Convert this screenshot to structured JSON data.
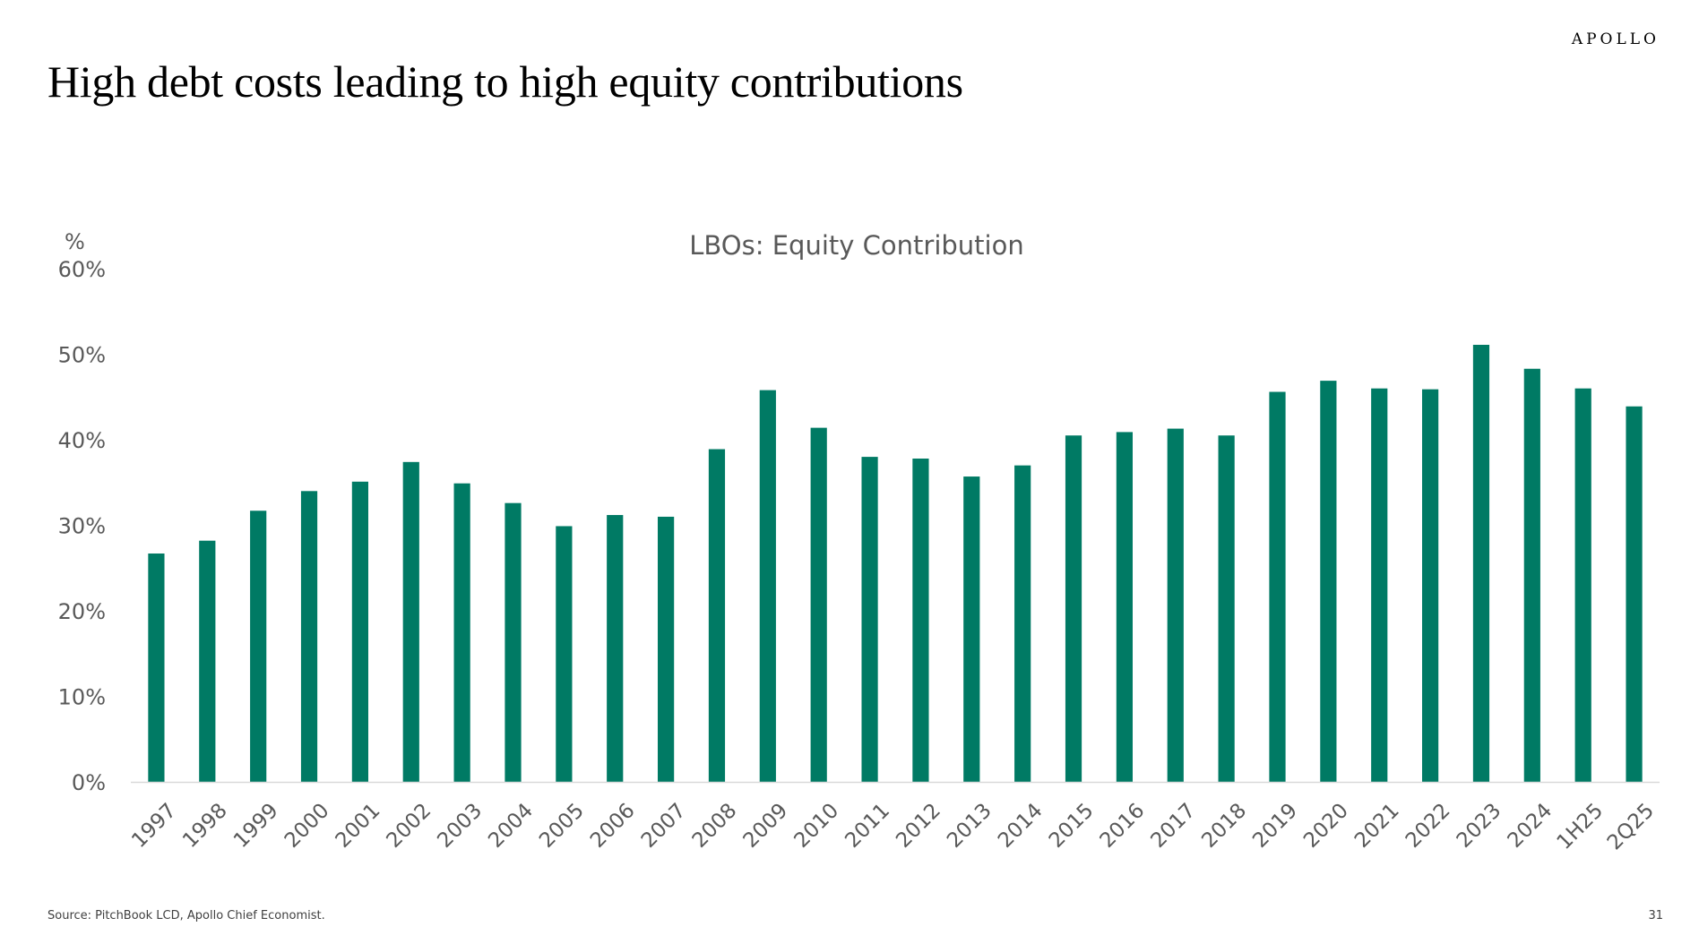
{
  "header": {
    "brand": "APOLLO",
    "title": "High debt costs leading to high equity contributions"
  },
  "footer": {
    "source": "Source: PitchBook LCD, Apollo Chief Economist.",
    "page_number": "31"
  },
  "colors": {
    "bar": "#007A64",
    "axis_line": "#D9D9D9",
    "axis_text": "#595959"
  },
  "chart_data": {
    "type": "bar",
    "title": "LBOs: Equity Contribution",
    "ylabel": "%",
    "xlabel": "",
    "ylim": [
      0,
      60
    ],
    "yticks": [
      0,
      10,
      20,
      30,
      40,
      50,
      60
    ],
    "ytick_labels": [
      "0%",
      "10%",
      "20%",
      "30%",
      "40%",
      "50%",
      "60%"
    ],
    "grid": false,
    "legend": "none",
    "categories": [
      "1997",
      "1998",
      "1999",
      "2000",
      "2001",
      "2002",
      "2003",
      "2004",
      "2005",
      "2006",
      "2007",
      "2008",
      "2009",
      "2010",
      "2011",
      "2012",
      "2013",
      "2014",
      "2015",
      "2016",
      "2017",
      "2018",
      "2019",
      "2020",
      "2021",
      "2022",
      "2023",
      "2024",
      "1H25",
      "2Q25"
    ],
    "values": [
      26.7,
      28.2,
      31.7,
      34.0,
      35.1,
      37.4,
      34.9,
      32.6,
      29.9,
      31.2,
      31.0,
      38.9,
      45.8,
      41.4,
      38.0,
      37.8,
      35.7,
      37.0,
      40.5,
      40.9,
      41.3,
      40.5,
      45.6,
      46.9,
      46.0,
      45.9,
      51.1,
      48.3,
      46.0,
      43.9
    ]
  }
}
